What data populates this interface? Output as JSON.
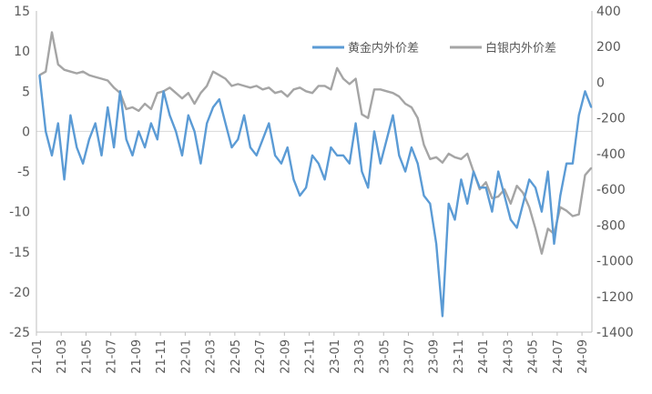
{
  "chart_data": {
    "type": "line",
    "title": "",
    "xlabel": "",
    "ylabel": "",
    "y2label": "",
    "ylim": [
      -25,
      15
    ],
    "y_ticks": [
      "15",
      "10",
      "5",
      "0",
      "-5",
      "-10",
      "-15",
      "-20",
      "-25"
    ],
    "y2lim": [
      -1400,
      400
    ],
    "y2_ticks": [
      "400",
      "200",
      "0",
      "-200",
      "-400",
      "-600",
      "-800",
      "-1000",
      "-1200",
      "-1400"
    ],
    "x_ticks": [
      "21-01",
      "21-03",
      "21-05",
      "21-07",
      "21-09",
      "21-11",
      "22-01",
      "22-03",
      "22-05",
      "22-07",
      "22-09",
      "22-11",
      "23-01",
      "23-03",
      "23-05",
      "23-07",
      "23-09",
      "23-11",
      "24-01",
      "24-03",
      "24-05",
      "24-07",
      "24-09"
    ],
    "legend_position": "top-right",
    "grid": false,
    "series": [
      {
        "name": "黄金内外价差",
        "axis": "left",
        "color": "#5B9BD5",
        "x": [
          "21-01",
          "21-01",
          "21-02",
          "21-02",
          "21-03",
          "21-03",
          "21-04",
          "21-04",
          "21-05",
          "21-05",
          "21-06",
          "21-06",
          "21-07",
          "21-07",
          "21-08",
          "21-08",
          "21-09",
          "21-09",
          "21-10",
          "21-10",
          "21-11",
          "21-11",
          "21-12",
          "21-12",
          "22-01",
          "22-01",
          "22-02",
          "22-02",
          "22-03",
          "22-03",
          "22-04",
          "22-04",
          "22-05",
          "22-05",
          "22-06",
          "22-06",
          "22-07",
          "22-07",
          "22-08",
          "22-08",
          "22-09",
          "22-09",
          "22-10",
          "22-10",
          "22-11",
          "22-11",
          "22-12",
          "22-12",
          "23-01",
          "23-01",
          "23-02",
          "23-02",
          "23-03",
          "23-03",
          "23-04",
          "23-04",
          "23-05",
          "23-05",
          "23-06",
          "23-06",
          "23-07",
          "23-07",
          "23-08",
          "23-08",
          "23-09",
          "23-09",
          "23-10",
          "23-10",
          "23-11",
          "23-11",
          "23-12",
          "23-12",
          "24-01",
          "24-01",
          "24-02",
          "24-02",
          "24-03",
          "24-03",
          "24-04",
          "24-04",
          "24-05",
          "24-05",
          "24-06",
          "24-06",
          "24-07",
          "24-07",
          "24-08",
          "24-08",
          "24-09",
          "24-09"
        ],
        "values": [
          7,
          0,
          -3,
          1,
          -6,
          2,
          -2,
          -4,
          -1,
          1,
          -3,
          3,
          -2,
          5,
          -1,
          -3,
          0,
          -2,
          1,
          -1,
          5,
          2,
          0,
          -3,
          2,
          0,
          -4,
          1,
          3,
          4,
          1,
          -2,
          -1,
          2,
          -2,
          -3,
          -1,
          1,
          -3,
          -4,
          -2,
          -6,
          -8,
          -7,
          -3,
          -4,
          -6,
          -2,
          -3,
          -3,
          -4,
          1,
          -5,
          -7,
          0,
          -4,
          -1,
          2,
          -3,
          -5,
          -2,
          -4,
          -8,
          -9,
          -14,
          -23,
          -9,
          -11,
          -6,
          -9,
          -5,
          -7,
          -7,
          -10,
          -5,
          -8,
          -11,
          -12,
          -9,
          -6,
          -7,
          -10,
          -5,
          -14,
          -8,
          -4,
          -4,
          2,
          5,
          3
        ]
      },
      {
        "name": "白银内外价差",
        "axis": "right",
        "color": "#A5A5A5",
        "x": [
          "21-01",
          "21-01",
          "21-02",
          "21-02",
          "21-03",
          "21-03",
          "21-04",
          "21-04",
          "21-05",
          "21-05",
          "21-06",
          "21-06",
          "21-07",
          "21-07",
          "21-08",
          "21-08",
          "21-09",
          "21-09",
          "21-10",
          "21-10",
          "21-11",
          "21-11",
          "21-12",
          "21-12",
          "22-01",
          "22-01",
          "22-02",
          "22-02",
          "22-03",
          "22-03",
          "22-04",
          "22-04",
          "22-05",
          "22-05",
          "22-06",
          "22-06",
          "22-07",
          "22-07",
          "22-08",
          "22-08",
          "22-09",
          "22-09",
          "22-10",
          "22-10",
          "22-11",
          "22-11",
          "22-12",
          "22-12",
          "23-01",
          "23-01",
          "23-02",
          "23-02",
          "23-03",
          "23-03",
          "23-04",
          "23-04",
          "23-05",
          "23-05",
          "23-06",
          "23-06",
          "23-07",
          "23-07",
          "23-08",
          "23-08",
          "23-09",
          "23-09",
          "23-10",
          "23-10",
          "23-11",
          "23-11",
          "23-12",
          "23-12",
          "24-01",
          "24-01",
          "24-02",
          "24-02",
          "24-03",
          "24-03",
          "24-04",
          "24-04",
          "24-05",
          "24-05",
          "24-06",
          "24-06",
          "24-07",
          "24-07",
          "24-08",
          "24-08",
          "24-09",
          "24-09"
        ],
        "values": [
          40,
          60,
          280,
          100,
          70,
          60,
          50,
          60,
          40,
          30,
          20,
          10,
          -30,
          -60,
          -150,
          -140,
          -160,
          -120,
          -150,
          -60,
          -50,
          -30,
          -60,
          -90,
          -60,
          -120,
          -60,
          -20,
          60,
          40,
          20,
          -20,
          -10,
          -20,
          -30,
          -20,
          -40,
          -30,
          -60,
          -50,
          -80,
          -40,
          -30,
          -50,
          -60,
          -20,
          -20,
          -40,
          80,
          20,
          -10,
          20,
          -180,
          -200,
          -40,
          -40,
          -50,
          -60,
          -80,
          -120,
          -140,
          -200,
          -350,
          -430,
          -420,
          -450,
          -400,
          -420,
          -430,
          -400,
          -500,
          -600,
          -560,
          -650,
          -640,
          -600,
          -680,
          -580,
          -620,
          -700,
          -820,
          -960,
          -820,
          -850,
          -700,
          -720,
          -750,
          -740,
          -520,
          -480
        ]
      }
    ]
  }
}
